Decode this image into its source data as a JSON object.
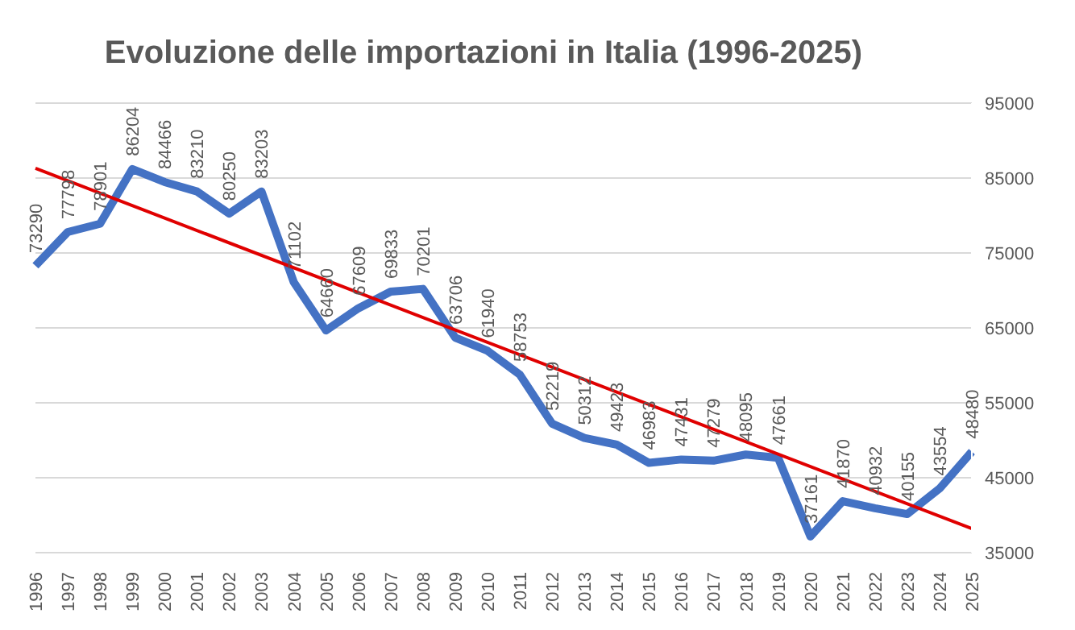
{
  "chart_data": {
    "type": "line",
    "title": "Evoluzione delle importazioni in Italia (1996-2025)",
    "categories": [
      "1996",
      "1997",
      "1998",
      "1999",
      "2000",
      "2001",
      "2002",
      "2003",
      "2004",
      "2005",
      "2006",
      "2007",
      "2008",
      "2009",
      "2010",
      "2011",
      "2012",
      "2013",
      "2014",
      "2015",
      "2016",
      "2017",
      "2018",
      "2019",
      "2020",
      "2021",
      "2022",
      "2023",
      "2024",
      "2025"
    ],
    "series": [
      {
        "color": "#4472c4",
        "values": [
          73290,
          77798,
          78901,
          86204,
          84466,
          83210,
          80250,
          83203,
          71102,
          64660,
          67609,
          69833,
          70201,
          63706,
          61940,
          58753,
          52219,
          50312,
          49423,
          46983,
          47431,
          47279,
          48095,
          47661,
          37161,
          41870,
          40932,
          40155,
          43554,
          48480
        ],
        "value_labels": [
          "73290",
          "77798",
          "78901",
          "86204",
          "84466",
          "83210",
          "80250",
          "83203",
          "71102",
          "64660",
          "67609",
          "69833",
          "70201",
          "63706",
          "61940",
          "58753",
          "52219",
          "50312",
          "49423",
          "46983",
          "47431",
          "47279",
          "48095",
          "47661",
          "37161",
          "41870",
          "40932",
          "40155",
          "43554",
          "48480"
        ]
      },
      {
        "type": "line",
        "color": "#e00000",
        "values": [
          86300,
          null,
          null,
          null,
          null,
          null,
          null,
          null,
          null,
          null,
          null,
          null,
          null,
          null,
          null,
          null,
          null,
          null,
          null,
          null,
          null,
          null,
          null,
          null,
          null,
          null,
          null,
          null,
          null,
          38200
        ]
      }
    ],
    "ylim": [
      35000,
      95000
    ],
    "yticks": [
      35000,
      45000,
      55000,
      65000,
      75000,
      85000,
      95000
    ],
    "grid": "y",
    "marker": "none",
    "line_style": "solid"
  }
}
